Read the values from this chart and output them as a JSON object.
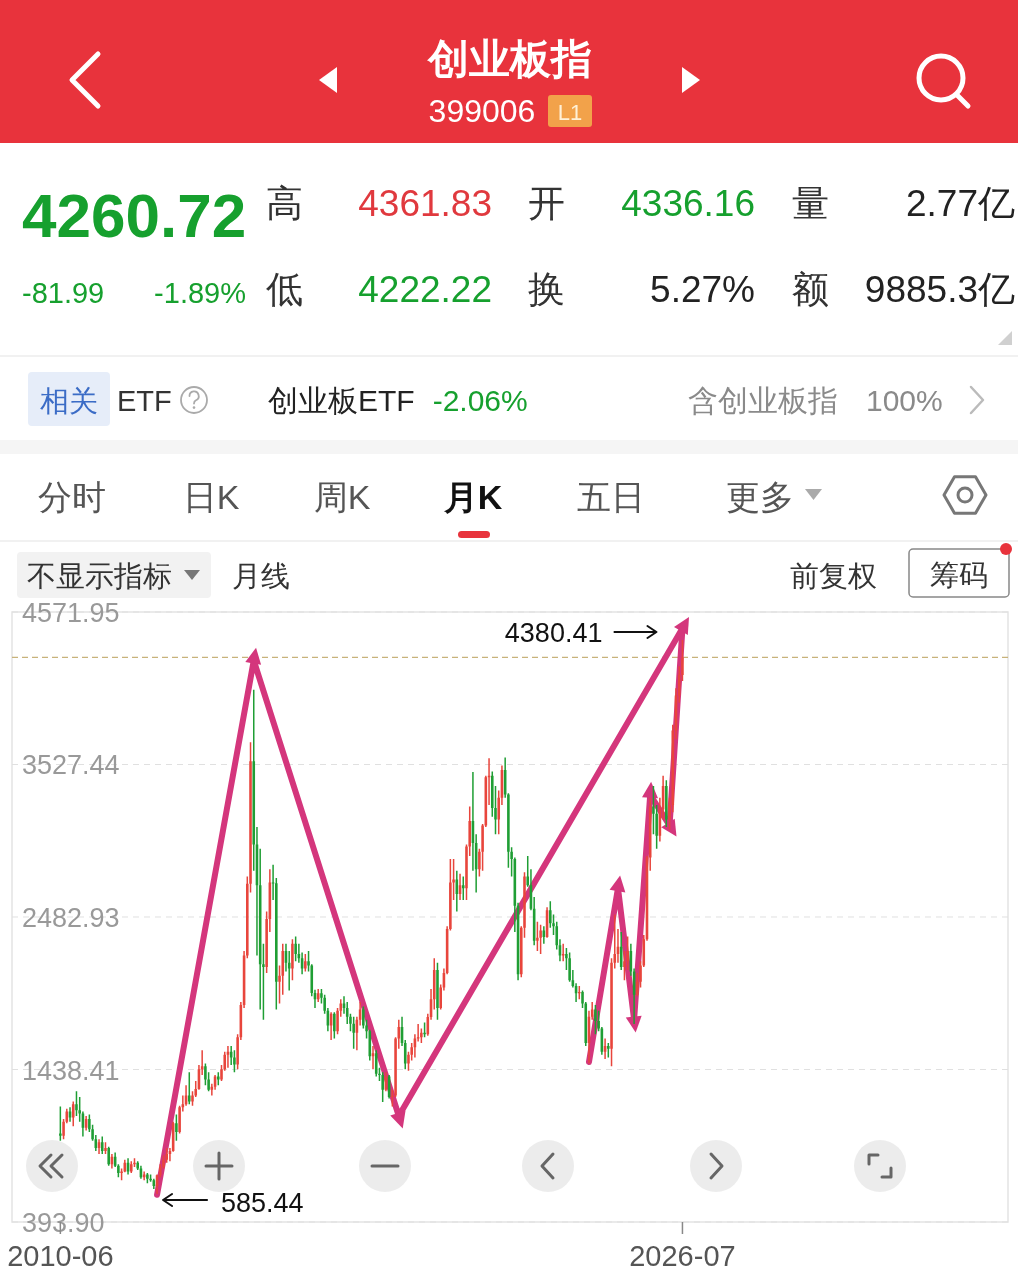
{
  "chart_data": [
    {
      "type": "other",
      "annotations": [
        "创业板指",
        "399006",
        "L1",
        "4260.72",
        "-81.99",
        "-1.89%",
        "高",
        "4361.83",
        "低",
        "4222.22",
        "开",
        "4336.16",
        "换",
        "5.27%",
        "量",
        "2.77亿",
        "额",
        "9885.3亿",
        "相关",
        "ETF",
        "创业板ETF",
        "-2.06%",
        "含创业板指",
        "100%",
        "分时",
        "日K",
        "周K",
        "月K",
        "五日",
        "更多",
        "不显示指标",
        "月线",
        "前复权",
        "筹码"
      ]
    },
    {
      "type": "candlestick",
      "x": [
        "2010-06",
        "2010-07",
        "2010-08",
        "2010-09",
        "2010-10",
        "2010-11",
        "2010-12",
        "2011-01",
        "2011-02",
        "2011-03",
        "2011-04",
        "2011-05",
        "2011-06",
        "2011-07",
        "2011-08",
        "2011-09",
        "2011-10",
        "2011-11",
        "2011-12",
        "2012-01",
        "2012-02",
        "2012-03",
        "2012-04",
        "2012-05",
        "2012-06",
        "2012-07",
        "2012-08",
        "2012-09",
        "2012-10",
        "2012-11",
        "2012-12",
        "2013-01",
        "2013-02",
        "2013-03",
        "2013-04",
        "2013-05",
        "2013-06",
        "2013-07",
        "2013-08",
        "2013-09",
        "2013-10",
        "2013-11",
        "2013-12",
        "2014-01",
        "2014-02",
        "2014-03",
        "2014-04",
        "2014-05",
        "2014-06",
        "2014-07",
        "2014-08",
        "2014-09",
        "2014-10",
        "2014-11",
        "2014-12",
        "2015-01",
        "2015-02",
        "2015-03",
        "2015-04",
        "2015-05",
        "2015-06",
        "2015-07",
        "2015-08",
        "2015-09",
        "2015-10",
        "2015-11",
        "2015-12",
        "2016-01",
        "2016-02",
        "2016-03",
        "2016-04",
        "2016-05",
        "2016-06",
        "2016-07",
        "2016-08",
        "2016-09",
        "2016-10",
        "2016-11",
        "2016-12",
        "2017-01",
        "2017-02",
        "2017-03",
        "2017-04",
        "2017-05",
        "2017-06",
        "2017-07",
        "2017-08",
        "2017-09",
        "2017-10",
        "2017-11",
        "2017-12",
        "2018-01",
        "2018-02",
        "2018-03",
        "2018-04",
        "2018-05",
        "2018-06",
        "2018-07",
        "2018-08",
        "2018-09",
        "2018-10",
        "2018-11",
        "2018-12",
        "2019-01",
        "2019-02",
        "2019-03",
        "2019-04",
        "2019-05",
        "2019-06",
        "2019-07",
        "2019-08",
        "2019-09",
        "2019-10",
        "2019-11",
        "2019-12",
        "2020-01",
        "2020-02",
        "2020-03",
        "2020-04",
        "2020-05",
        "2020-06",
        "2020-07",
        "2020-08",
        "2020-09",
        "2020-10",
        "2020-11",
        "2020-12",
        "2021-01",
        "2021-02",
        "2021-03",
        "2021-04",
        "2021-05",
        "2021-06",
        "2021-07",
        "2021-08",
        "2021-09",
        "2021-10",
        "2021-11",
        "2021-12",
        "2022-01",
        "2022-02",
        "2022-03",
        "2022-04",
        "2022-05",
        "2022-06",
        "2022-07",
        "2022-08",
        "2022-09",
        "2022-10",
        "2022-11",
        "2022-12",
        "2023-01",
        "2023-02",
        "2023-03",
        "2023-04",
        "2023-05",
        "2023-06",
        "2023-07",
        "2023-08",
        "2023-09",
        "2023-10",
        "2023-11",
        "2023-12",
        "2024-01",
        "2024-02",
        "2024-03",
        "2024-04",
        "2024-05",
        "2024-06",
        "2024-07",
        "2024-08",
        "2024-09",
        "2024-10",
        "2024-11",
        "2024-12",
        "2025-01",
        "2025-02",
        "2025-03",
        "2025-04",
        "2025-05",
        "2025-06",
        "2025-07",
        "2025-08",
        "2025-09",
        "2025-10",
        "2025-11",
        "2025-12",
        "2026-01",
        "2026-02",
        "2026-03",
        "2026-04",
        "2026-05",
        "2026-06",
        "2026-07"
      ],
      "ohlc": [
        [
          1000,
          1185,
          950,
          985
        ],
        [
          985,
          1100,
          960,
          1080
        ],
        [
          1080,
          1170,
          1070,
          1150
        ],
        [
          1150,
          1180,
          1080,
          1110
        ],
        [
          1110,
          1220,
          1050,
          1200
        ],
        [
          1200,
          1290,
          1120,
          1160
        ],
        [
          1160,
          1250,
          1080,
          1137
        ],
        [
          1137,
          1150,
          980,
          1040
        ],
        [
          1040,
          1120,
          1020,
          1100
        ],
        [
          1100,
          1130,
          1010,
          1030
        ],
        [
          1030,
          1060,
          950,
          960
        ],
        [
          960,
          990,
          880,
          900
        ],
        [
          900,
          960,
          860,
          940
        ],
        [
          940,
          980,
          860,
          880
        ],
        [
          880,
          940,
          860,
          900
        ],
        [
          900,
          910,
          780,
          790
        ],
        [
          790,
          860,
          760,
          840
        ],
        [
          840,
          870,
          770,
          780
        ],
        [
          780,
          790,
          700,
          730
        ],
        [
          730,
          760,
          680,
          740
        ],
        [
          740,
          820,
          735,
          800
        ],
        [
          800,
          830,
          720,
          740
        ],
        [
          740,
          810,
          730,
          790
        ],
        [
          790,
          830,
          770,
          800
        ],
        [
          800,
          810,
          750,
          760
        ],
        [
          760,
          780,
          690,
          700
        ],
        [
          700,
          740,
          680,
          720
        ],
        [
          720,
          730,
          660,
          690
        ],
        [
          690,
          720,
          670,
          680
        ],
        [
          680,
          690,
          620,
          640
        ],
        [
          640,
          720,
          585.44,
          714
        ],
        [
          714,
          790,
          700,
          770
        ],
        [
          770,
          850,
          760,
          820
        ],
        [
          820,
          900,
          800,
          860
        ],
        [
          860,
          900,
          810,
          880
        ],
        [
          880,
          1080,
          875,
          1070
        ],
        [
          1070,
          1130,
          950,
          1010
        ],
        [
          1010,
          1190,
          1000,
          1180
        ],
        [
          1180,
          1260,
          1150,
          1200
        ],
        [
          1200,
          1330,
          1190,
          1260
        ],
        [
          1260,
          1420,
          1200,
          1220
        ],
        [
          1220,
          1290,
          1190,
          1260
        ],
        [
          1260,
          1360,
          1250,
          1304
        ],
        [
          1304,
          1470,
          1300,
          1440
        ],
        [
          1440,
          1570,
          1400,
          1460
        ],
        [
          1460,
          1480,
          1330,
          1370
        ],
        [
          1370,
          1420,
          1290,
          1300
        ],
        [
          1300,
          1340,
          1260,
          1320
        ],
        [
          1320,
          1400,
          1300,
          1390
        ],
        [
          1390,
          1420,
          1330,
          1370
        ],
        [
          1370,
          1470,
          1360,
          1440
        ],
        [
          1440,
          1560,
          1430,
          1540
        ],
        [
          1540,
          1600,
          1450,
          1560
        ],
        [
          1560,
          1600,
          1470,
          1520
        ],
        [
          1520,
          1570,
          1420,
          1472
        ],
        [
          1472,
          1680,
          1440,
          1660
        ],
        [
          1660,
          1900,
          1640,
          1880
        ],
        [
          1880,
          2250,
          1860,
          2220
        ],
        [
          2220,
          2760,
          2200,
          2710
        ],
        [
          2710,
          3680,
          2650,
          3550
        ],
        [
          3550,
          4040,
          2800,
          2980
        ],
        [
          2980,
          3100,
          2220,
          2700
        ],
        [
          2700,
          2950,
          1850,
          2160
        ],
        [
          2160,
          2300,
          1779,
          2140
        ],
        [
          2140,
          2520,
          2100,
          2470
        ],
        [
          2470,
          2810,
          2380,
          2720
        ],
        [
          2720,
          2840,
          2600,
          2714
        ],
        [
          2714,
          2750,
          1850,
          2040
        ],
        [
          2040,
          2150,
          1890,
          2080
        ],
        [
          2080,
          2300,
          1950,
          2250
        ],
        [
          2250,
          2300,
          2110,
          2170
        ],
        [
          2170,
          2250,
          1980,
          2130
        ],
        [
          2130,
          2330,
          2050,
          2300
        ],
        [
          2300,
          2350,
          2180,
          2230
        ],
        [
          2230,
          2300,
          2170,
          2200
        ],
        [
          2200,
          2240,
          2090,
          2130
        ],
        [
          2130,
          2230,
          2110,
          2180
        ],
        [
          2180,
          2250,
          2110,
          2150
        ],
        [
          2150,
          2160,
          1940,
          1963
        ],
        [
          1963,
          1985,
          1860,
          1920
        ],
        [
          1920,
          1990,
          1900,
          1960
        ],
        [
          1960,
          1990,
          1890,
          1930
        ],
        [
          1930,
          1950,
          1820,
          1840
        ],
        [
          1840,
          1860,
          1700,
          1740
        ],
        [
          1740,
          1830,
          1640,
          1820
        ],
        [
          1820,
          1830,
          1650,
          1700
        ],
        [
          1700,
          1860,
          1680,
          1840
        ],
        [
          1840,
          1920,
          1800,
          1890
        ],
        [
          1890,
          1940,
          1820,
          1860
        ],
        [
          1860,
          1900,
          1750,
          1800
        ],
        [
          1800,
          1820,
          1700,
          1752
        ],
        [
          1752,
          1800,
          1580,
          1690
        ],
        [
          1690,
          1800,
          1570,
          1780
        ],
        [
          1780,
          1900,
          1740,
          1850
        ],
        [
          1850,
          1870,
          1720,
          1740
        ],
        [
          1740,
          1780,
          1650,
          1700
        ],
        [
          1700,
          1710,
          1500,
          1530
        ],
        [
          1530,
          1600,
          1440,
          1550
        ],
        [
          1550,
          1570,
          1390,
          1410
        ],
        [
          1410,
          1450,
          1360,
          1400
        ],
        [
          1400,
          1420,
          1216,
          1300
        ],
        [
          1300,
          1420,
          1290,
          1390
        ],
        [
          1390,
          1400,
          1240,
          1250
        ],
        [
          1250,
          1300,
          1185,
          1260
        ],
        [
          1260,
          1660,
          1250,
          1650
        ],
        [
          1650,
          1780,
          1580,
          1730
        ],
        [
          1730,
          1800,
          1600,
          1620
        ],
        [
          1620,
          1640,
          1440,
          1480
        ],
        [
          1480,
          1560,
          1430,
          1540
        ],
        [
          1540,
          1620,
          1500,
          1590
        ],
        [
          1590,
          1680,
          1520,
          1650
        ],
        [
          1650,
          1750,
          1630,
          1660
        ],
        [
          1660,
          1720,
          1620,
          1690
        ],
        [
          1690,
          1760,
          1660,
          1680
        ],
        [
          1680,
          1820,
          1670,
          1798
        ],
        [
          1798,
          1990,
          1780,
          1920
        ],
        [
          1920,
          2200,
          1850,
          2120
        ],
        [
          2120,
          2170,
          1780,
          1860
        ],
        [
          1860,
          2020,
          1850,
          2000
        ],
        [
          2000,
          2130,
          1980,
          2100
        ],
        [
          2100,
          2420,
          2090,
          2400
        ],
        [
          2400,
          2880,
          2390,
          2720
        ],
        [
          2720,
          2880,
          2600,
          2740
        ],
        [
          2740,
          2800,
          2520,
          2640
        ],
        [
          2640,
          2780,
          2600,
          2700
        ],
        [
          2700,
          2760,
          2600,
          2680
        ],
        [
          2680,
          2980,
          2600,
          2966
        ],
        [
          2966,
          3240,
          2900,
          3140
        ],
        [
          3140,
          3476,
          2800,
          2990
        ],
        [
          2990,
          3050,
          2650,
          2810
        ],
        [
          2810,
          2950,
          2760,
          2930
        ],
        [
          2930,
          3120,
          2800,
          3110
        ],
        [
          3110,
          3450,
          3100,
          3440
        ],
        [
          3440,
          3570,
          3250,
          3450
        ],
        [
          3450,
          3480,
          3170,
          3230
        ],
        [
          3230,
          3380,
          3050,
          3150
        ],
        [
          3150,
          3350,
          3050,
          3300
        ],
        [
          3300,
          3520,
          3250,
          3490
        ],
        [
          3490,
          3576,
          3300,
          3322
        ],
        [
          3322,
          3330,
          2820,
          2930
        ],
        [
          2930,
          2960,
          2760,
          2880
        ],
        [
          2880,
          2890,
          2380,
          2560
        ],
        [
          2560,
          2580,
          2050,
          2090
        ],
        [
          2090,
          2420,
          2070,
          2410
        ],
        [
          2410,
          2790,
          2340,
          2760
        ],
        [
          2760,
          2900,
          2690,
          2700
        ],
        [
          2700,
          2810,
          2530,
          2540
        ],
        [
          2540,
          2620,
          2290,
          2320
        ],
        [
          2320,
          2450,
          2250,
          2340
        ],
        [
          2340,
          2430,
          2230,
          2390
        ],
        [
          2390,
          2420,
          2300,
          2346
        ],
        [
          2346,
          2550,
          2340,
          2530
        ],
        [
          2530,
          2590,
          2410,
          2440
        ],
        [
          2440,
          2500,
          2360,
          2420
        ],
        [
          2420,
          2450,
          2260,
          2290
        ],
        [
          2290,
          2330,
          2180,
          2220
        ],
        [
          2220,
          2300,
          2180,
          2230
        ],
        [
          2230,
          2270,
          2120,
          2200
        ],
        [
          2200,
          2240,
          2040,
          2050
        ],
        [
          2050,
          2120,
          2000,
          2010
        ],
        [
          2010,
          2030,
          1900,
          1960
        ],
        [
          1960,
          2010,
          1920,
          1970
        ],
        [
          1970,
          1980,
          1860,
          1891
        ],
        [
          1891,
          1900,
          1600,
          1620
        ],
        [
          1620,
          1840,
          1482,
          1800
        ],
        [
          1800,
          1900,
          1780,
          1850
        ],
        [
          1850,
          1880,
          1680,
          1770
        ],
        [
          1770,
          1840,
          1700,
          1720
        ],
        [
          1720,
          1730,
          1540,
          1560
        ],
        [
          1560,
          1650,
          1510,
          1600
        ],
        [
          1600,
          1620,
          1520,
          1580
        ],
        [
          1580,
          2200,
          1460,
          2170
        ],
        [
          2170,
          2500,
          2130,
          2230
        ],
        [
          2230,
          2400,
          2170,
          2280
        ],
        [
          2280,
          2380,
          2120,
          2141
        ],
        [
          2141,
          2250,
          2050,
          2180
        ],
        [
          2180,
          2350,
          2120,
          2250
        ],
        [
          2250,
          2300,
          2080,
          2110
        ],
        [
          2110,
          2130,
          1750,
          1950
        ],
        [
          1950,
          2100,
          1940,
          2040
        ],
        [
          2040,
          2180,
          2000,
          2150
        ],
        [
          2150,
          2360,
          2140,
          2330
        ],
        [
          2330,
          2900,
          2320,
          2890
        ],
        [
          2890,
          3300,
          2800,
          3240
        ],
        [
          3240,
          3380,
          3050,
          3190
        ],
        [
          3190,
          3250,
          2950,
          3040
        ],
        [
          3040,
          3300,
          3000,
          3220
        ],
        [
          3220,
          3450,
          3150,
          3380
        ],
        [
          3380,
          3420,
          3100,
          3150
        ],
        [
          3150,
          3300,
          3080,
          3250
        ],
        [
          3250,
          3800,
          3200,
          3760
        ],
        [
          3760,
          4050,
          3700,
          4000
        ],
        [
          4000,
          4200,
          3950,
          4140
        ],
        [
          4140,
          4380.41,
          4100,
          4260.72
        ]
      ],
      "colors": [
        "#1f9e34",
        "#e8453c",
        "#e8453c",
        "#1f9e34",
        "#e8453c",
        "#1f9e34",
        "#1f9e34",
        "#1f9e34",
        "#e8453c",
        "#1f9e34",
        "#1f9e34",
        "#1f9e34",
        "#e8453c",
        "#1f9e34",
        "#e8453c",
        "#1f9e34",
        "#e8453c",
        "#1f9e34",
        "#1f9e34",
        "#e8453c",
        "#e8453c",
        "#1f9e34",
        "#e8453c",
        "#e8453c",
        "#1f9e34",
        "#1f9e34",
        "#e8453c",
        "#1f9e34",
        "#1f9e34",
        "#1f9e34",
        "#e8453c",
        "#e8453c",
        "#e8453c",
        "#e8453c",
        "#e8453c",
        "#e8453c",
        "#1f9e34",
        "#e8453c",
        "#e8453c",
        "#e8453c",
        "#1f9e34",
        "#e8453c",
        "#e8453c",
        "#e8453c",
        "#e8453c",
        "#1f9e34",
        "#1f9e34",
        "#e8453c",
        "#e8453c",
        "#1f9e34",
        "#e8453c",
        "#e8453c",
        "#e8453c",
        "#1f9e34",
        "#1f9e34",
        "#e8453c",
        "#e8453c",
        "#e8453c",
        "#e8453c",
        "#e8453c",
        "#1f9e34",
        "#1f9e34",
        "#1f9e34",
        "#1f9e34",
        "#e8453c",
        "#e8453c",
        "#1f9e34",
        "#1f9e34",
        "#e8453c",
        "#e8453c",
        "#1f9e34",
        "#1f9e34",
        "#e8453c",
        "#1f9e34",
        "#1f9e34",
        "#1f9e34",
        "#e8453c",
        "#1f9e34",
        "#1f9e34",
        "#1f9e34",
        "#e8453c",
        "#1f9e34",
        "#1f9e34",
        "#1f9e34",
        "#e8453c",
        "#1f9e34",
        "#e8453c",
        "#e8453c",
        "#1f9e34",
        "#1f9e34",
        "#1f9e34",
        "#1f9e34",
        "#e8453c",
        "#e8453c",
        "#1f9e34",
        "#1f9e34",
        "#1f9e34",
        "#e8453c",
        "#1f9e34",
        "#1f9e34",
        "#1f9e34",
        "#e8453c",
        "#1f9e34",
        "#e8453c",
        "#e8453c",
        "#e8453c",
        "#1f9e34",
        "#1f9e34",
        "#e8453c",
        "#e8453c",
        "#e8453c",
        "#e8453c",
        "#e8453c",
        "#1f9e34",
        "#e8453c",
        "#e8453c",
        "#e8453c",
        "#1f9e34",
        "#e8453c",
        "#e8453c",
        "#e8453c",
        "#e8453c",
        "#e8453c",
        "#1f9e34",
        "#e8453c",
        "#1f9e34",
        "#e8453c",
        "#e8453c",
        "#1f9e34",
        "#1f9e34",
        "#e8453c",
        "#e8453c",
        "#e8453c",
        "#e8453c",
        "#1f9e34",
        "#1f9e34",
        "#e8453c",
        "#e8453c",
        "#1f9e34",
        "#1f9e34",
        "#1f9e34",
        "#1f9e34",
        "#1f9e34",
        "#e8453c",
        "#e8453c",
        "#1f9e34",
        "#1f9e34",
        "#1f9e34",
        "#e8453c",
        "#e8453c",
        "#1f9e34",
        "#e8453c",
        "#1f9e34",
        "#1f9e34",
        "#1f9e34",
        "#1f9e34",
        "#e8453c",
        "#1f9e34",
        "#1f9e34",
        "#1f9e34",
        "#1f9e34",
        "#e8453c",
        "#1f9e34",
        "#1f9e34",
        "#e8453c",
        "#e8453c",
        "#1f9e34",
        "#1f9e34",
        "#1f9e34",
        "#e8453c",
        "#1f9e34",
        "#e8453c",
        "#e8453c",
        "#e8453c",
        "#1f9e34",
        "#e8453c",
        "#e8453c",
        "#1f9e34",
        "#1f9e34",
        "#e8453c",
        "#e8453c",
        "#e8453c",
        "#e8453c",
        "#e8453c",
        "#1f9e34",
        "#1f9e34",
        "#e8453c",
        "#e8453c",
        "#1f9e34",
        "#e8453c",
        "#e8453c",
        "#e8453c",
        "#e8453c",
        "#e8453c"
      ],
      "xlim": [
        "2009-03",
        "2034-12"
      ],
      "xticks": [
        "2010-06",
        "2026-07"
      ],
      "ylim": [
        393.9,
        4571.95
      ],
      "yticks": [
        {
          "value": 393.9,
          "label": "393.90"
        },
        1438.41,
        2482.93,
        3527.44,
        4571.95
      ],
      "grid": "y",
      "ref_lines": [
        {
          "axis": "y",
          "value": 4260.72,
          "color": "#c8b27a",
          "line_style": "dashed"
        }
      ],
      "series": [
        {
          "type": "line",
          "color": "#d4367c",
          "x": [
            "2012-12",
            "2015-06",
            "2019-03",
            "2026-07"
          ],
          "values": [
            580,
            4240,
            1120,
            4460
          ]
        },
        {
          "type": "line",
          "color": "#d4367c",
          "x": [
            "2024-02",
            "2024-11",
            "2025-04",
            "2025-09",
            "2026-03",
            "2026-07"
          ],
          "values": [
            1490,
            2680,
            1780,
            3320,
            3110,
            4460
          ]
        }
      ],
      "annotations": [
        {
          "text": "4380.41",
          "x": "2026-07",
          "y": 4380.41
        },
        {
          "text": "585.44",
          "x": "2012-12",
          "y": 585.44
        }
      ]
    }
  ]
}
